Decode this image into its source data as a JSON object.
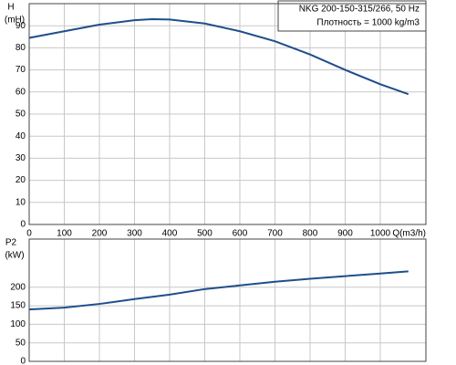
{
  "chart_data": [
    {
      "type": "line",
      "y_label_top": "H",
      "y_label": "(mH)",
      "x_label": "Q(m3/h)",
      "annotations": [
        "NKG 200-150-315/266, 50 Hz",
        "Плотность = 1000 kg/m3"
      ],
      "x": [
        0,
        100,
        200,
        300,
        350,
        400,
        500,
        600,
        700,
        800,
        900,
        1000,
        1080
      ],
      "series": [
        {
          "color": "#1f4e8c",
          "values": [
            84.5,
            87.5,
            90.5,
            92.5,
            93,
            92.8,
            91,
            87.5,
            83,
            77,
            70,
            63.5,
            59
          ]
        }
      ],
      "xlim": [
        0,
        1130
      ],
      "xticks": [
        0,
        100,
        200,
        300,
        400,
        500,
        600,
        700,
        800,
        900,
        1000
      ],
      "ylim": [
        0,
        100
      ],
      "yticks": [
        0,
        10,
        20,
        30,
        40,
        50,
        60,
        70,
        80,
        90
      ],
      "grid": true
    },
    {
      "type": "line",
      "y_label_top": "P2",
      "y_label": "(kW)",
      "x": [
        0,
        100,
        200,
        300,
        400,
        500,
        600,
        700,
        800,
        900,
        1000,
        1080
      ],
      "series": [
        {
          "color": "#1f4e8c",
          "values": [
            140,
            145,
            155,
            168,
            180,
            195,
            205,
            215,
            223,
            230,
            237,
            243
          ]
        }
      ],
      "xlim": [
        0,
        1130
      ],
      "xticks": [
        0,
        100,
        200,
        300,
        400,
        500,
        600,
        700,
        800,
        900,
        1000
      ],
      "ylim": [
        0,
        330
      ],
      "yticks": [
        0,
        50,
        100,
        150,
        200
      ],
      "grid": true
    }
  ]
}
